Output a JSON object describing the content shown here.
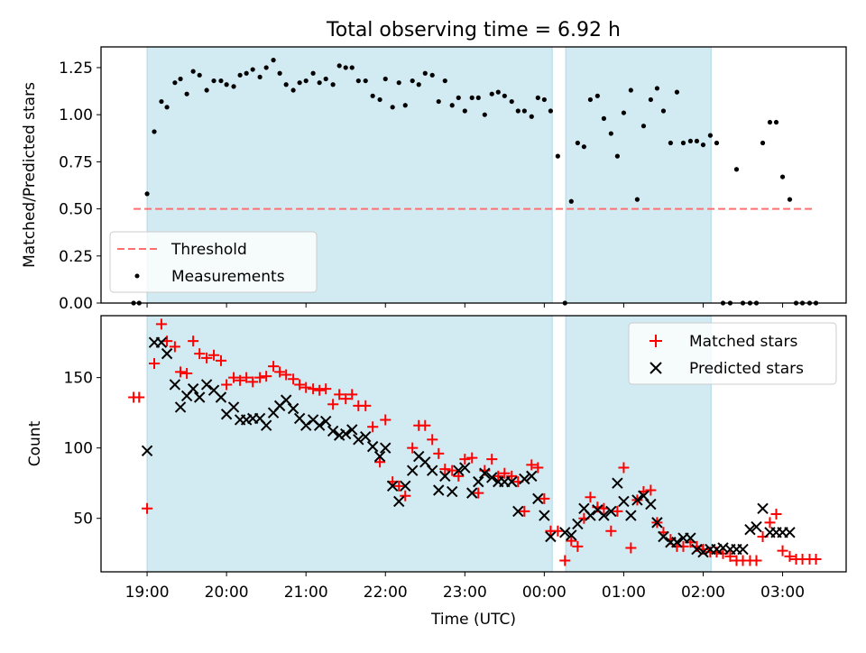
{
  "figure": {
    "title": "Total observing time = 6.92 h",
    "xlabel": "Time (UTC)",
    "xticks": [
      "19:00",
      "20:00",
      "21:00",
      "22:00",
      "23:00",
      "00:00",
      "01:00",
      "02:00",
      "03:00"
    ]
  },
  "colors": {
    "span": "#add8e6",
    "threshold": "#ff6f6f",
    "measure": "#000000",
    "matched": "#ff0000",
    "predicted": "#000000"
  },
  "chart_data": [
    {
      "type": "scatter",
      "ylabel": "Matched/Predicted stars",
      "ylim": [
        0,
        1.36
      ],
      "yticks": [
        "0.00",
        "0.25",
        "0.50",
        "0.75",
        "1.00",
        "1.25"
      ],
      "x_unit": "hours since 19:00 UTC",
      "xlim": [
        -0.58,
        8.8
      ],
      "shaded_spans": [
        [
          0.0,
          5.1
        ],
        [
          5.27,
          7.1
        ]
      ],
      "threshold": {
        "name": "Threshold",
        "value": 0.5,
        "x_range": [
          -0.17,
          8.4
        ]
      },
      "legend": {
        "position": "lower-left",
        "entries": [
          "Threshold",
          "Measurements"
        ]
      },
      "series": [
        {
          "name": "Measurements",
          "marker": "dot",
          "x": [
            -0.17,
            -0.1,
            0.0,
            0.09,
            0.18,
            0.25,
            0.35,
            0.42,
            0.5,
            0.58,
            0.66,
            0.75,
            0.84,
            0.93,
            1.0,
            1.09,
            1.17,
            1.25,
            1.33,
            1.42,
            1.5,
            1.59,
            1.67,
            1.75,
            1.84,
            1.92,
            2.0,
            2.09,
            2.17,
            2.25,
            2.34,
            2.42,
            2.5,
            2.58,
            2.66,
            2.75,
            2.84,
            2.93,
            3.0,
            3.09,
            3.17,
            3.25,
            3.34,
            3.42,
            3.5,
            3.59,
            3.67,
            3.75,
            3.84,
            3.92,
            4.0,
            4.09,
            4.17,
            4.25,
            4.34,
            4.42,
            4.5,
            4.59,
            4.67,
            4.75,
            4.84,
            4.92,
            5.0,
            5.08,
            5.17,
            5.26,
            5.34,
            5.42,
            5.5,
            5.58,
            5.67,
            5.75,
            5.84,
            5.92,
            6.0,
            6.09,
            6.17,
            6.25,
            6.34,
            6.42,
            6.5,
            6.59,
            6.67,
            6.75,
            6.84,
            6.92,
            7.0,
            7.09,
            7.17,
            7.25,
            7.34,
            7.42,
            7.5,
            7.59,
            7.67,
            7.75,
            7.84,
            7.92,
            8.0,
            8.09,
            8.17,
            8.25,
            8.34,
            8.42
          ],
          "y": [
            0.0,
            0.0,
            0.58,
            0.91,
            1.07,
            1.04,
            1.17,
            1.19,
            1.11,
            1.23,
            1.21,
            1.13,
            1.18,
            1.18,
            1.16,
            1.15,
            1.21,
            1.22,
            1.24,
            1.2,
            1.25,
            1.29,
            1.22,
            1.16,
            1.13,
            1.17,
            1.18,
            1.22,
            1.17,
            1.19,
            1.16,
            1.26,
            1.25,
            1.25,
            1.18,
            1.18,
            1.1,
            1.08,
            1.19,
            1.04,
            1.17,
            1.05,
            1.18,
            1.16,
            1.22,
            1.21,
            1.07,
            1.18,
            1.05,
            1.09,
            1.02,
            1.09,
            1.09,
            1.0,
            1.11,
            1.12,
            1.1,
            1.07,
            1.02,
            1.02,
            0.99,
            1.09,
            1.08,
            1.02,
            0.78,
            0.0,
            0.54,
            0.85,
            0.83,
            1.08,
            1.1,
            0.98,
            0.9,
            0.78,
            1.01,
            1.13,
            0.55,
            0.94,
            1.08,
            1.14,
            1.02,
            0.85,
            1.12,
            0.85,
            0.86,
            0.86,
            0.84,
            0.89,
            0.85,
            0.0,
            0.0,
            0.71,
            0.0,
            0.0,
            0.0,
            0.85,
            0.96,
            0.96,
            0.67,
            0.55,
            0.0,
            0.0,
            0.0,
            0.0
          ]
        }
      ]
    },
    {
      "type": "scatter",
      "ylabel": "Count",
      "ylim": [
        12,
        194
      ],
      "yticks": [
        "50",
        "100",
        "150"
      ],
      "x_unit": "hours since 19:00 UTC",
      "xlim": [
        -0.58,
        8.8
      ],
      "shaded_spans": [
        [
          0.0,
          5.1
        ],
        [
          5.27,
          7.1
        ]
      ],
      "legend": {
        "position": "top-right",
        "entries": [
          "Matched stars",
          "Predicted stars"
        ]
      },
      "series": [
        {
          "name": "Matched stars",
          "marker": "plus",
          "x": [
            -0.17,
            -0.1,
            0.0,
            0.09,
            0.18,
            0.25,
            0.35,
            0.42,
            0.5,
            0.58,
            0.66,
            0.75,
            0.84,
            0.93,
            1.0,
            1.09,
            1.17,
            1.25,
            1.33,
            1.42,
            1.5,
            1.59,
            1.67,
            1.75,
            1.84,
            1.92,
            2.0,
            2.09,
            2.17,
            2.25,
            2.34,
            2.42,
            2.5,
            2.58,
            2.66,
            2.75,
            2.84,
            2.93,
            3.0,
            3.09,
            3.17,
            3.25,
            3.34,
            3.42,
            3.5,
            3.59,
            3.67,
            3.75,
            3.84,
            3.92,
            4.0,
            4.09,
            4.17,
            4.25,
            4.34,
            4.42,
            4.5,
            4.59,
            4.67,
            4.75,
            4.84,
            4.92,
            5.0,
            5.08,
            5.17,
            5.26,
            5.34,
            5.42,
            5.5,
            5.58,
            5.67,
            5.75,
            5.84,
            5.92,
            6.0,
            6.09,
            6.17,
            6.25,
            6.34,
            6.42,
            6.5,
            6.59,
            6.67,
            6.75,
            6.84,
            6.92,
            7.0,
            7.09,
            7.17,
            7.25,
            7.34,
            7.42,
            7.5,
            7.59,
            7.67,
            7.75,
            7.84,
            7.92,
            8.0,
            8.09,
            8.17,
            8.25,
            8.34,
            8.42
          ],
          "y": [
            136,
            136,
            57,
            160,
            188,
            176,
            172,
            154,
            153,
            176,
            167,
            164,
            166,
            162,
            145,
            150,
            148,
            150,
            147,
            150,
            151,
            158,
            154,
            152,
            149,
            145,
            143,
            142,
            141,
            142,
            131,
            138,
            135,
            138,
            130,
            130,
            115,
            90,
            120,
            76,
            73,
            66,
            100,
            116,
            116,
            106,
            96,
            85,
            84,
            80,
            92,
            93,
            68,
            84,
            92,
            80,
            82,
            80,
            76,
            55,
            88,
            86,
            64,
            41,
            41,
            20,
            34,
            30,
            50,
            65,
            58,
            57,
            41,
            55,
            86,
            29,
            63,
            69,
            70,
            47,
            40,
            35,
            30,
            30,
            33,
            30,
            28,
            26,
            26,
            25,
            23,
            20,
            20,
            20,
            20,
            37,
            47,
            53,
            27,
            23,
            21,
            21,
            21,
            21
          ]
        },
        {
          "name": "Predicted stars",
          "marker": "x",
          "x": [
            0.0,
            0.09,
            0.18,
            0.25,
            0.35,
            0.42,
            0.5,
            0.58,
            0.66,
            0.75,
            0.84,
            0.93,
            1.0,
            1.09,
            1.17,
            1.25,
            1.33,
            1.42,
            1.5,
            1.59,
            1.67,
            1.75,
            1.84,
            1.92,
            2.0,
            2.09,
            2.17,
            2.25,
            2.34,
            2.42,
            2.5,
            2.58,
            2.66,
            2.75,
            2.84,
            2.93,
            3.0,
            3.09,
            3.17,
            3.25,
            3.34,
            3.42,
            3.5,
            3.59,
            3.67,
            3.75,
            3.84,
            3.92,
            4.0,
            4.09,
            4.17,
            4.25,
            4.34,
            4.42,
            4.5,
            4.59,
            4.67,
            4.75,
            4.84,
            4.92,
            5.0,
            5.08,
            5.26,
            5.34,
            5.42,
            5.5,
            5.58,
            5.67,
            5.75,
            5.84,
            5.92,
            6.0,
            6.09,
            6.17,
            6.25,
            6.34,
            6.42,
            6.5,
            6.59,
            6.67,
            6.75,
            6.84,
            6.92,
            7.0,
            7.09,
            7.17,
            7.25,
            7.34,
            7.42,
            7.5,
            7.59,
            7.67,
            7.75,
            7.84,
            7.92,
            8.0,
            8.09
          ],
          "y": [
            98,
            175,
            175,
            167,
            145,
            129,
            137,
            142,
            136,
            145,
            141,
            136,
            124,
            129,
            120,
            120,
            121,
            121,
            116,
            125,
            130,
            134,
            128,
            121,
            116,
            120,
            116,
            119,
            112,
            109,
            110,
            113,
            106,
            108,
            101,
            94,
            100,
            73,
            62,
            73,
            84,
            94,
            90,
            84,
            70,
            80,
            69,
            84,
            86,
            68,
            76,
            82,
            79,
            76,
            76,
            76,
            55,
            78,
            80,
            64,
            52,
            37,
            40,
            38,
            46,
            57,
            52,
            56,
            52,
            55,
            75,
            62,
            52,
            63,
            66,
            60,
            47,
            37,
            33,
            33,
            36,
            36,
            28,
            26,
            28,
            28,
            29,
            28,
            28,
            28,
            42,
            44,
            57,
            40,
            40,
            40,
            40
          ]
        }
      ]
    }
  ]
}
